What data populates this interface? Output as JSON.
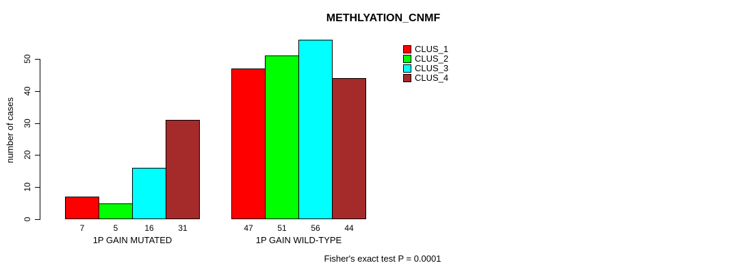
{
  "chart_data": {
    "type": "bar",
    "title": "METHLYATION_CNMF",
    "ylabel": "number of cases",
    "categories": [
      "1P GAIN MUTATED",
      "1P GAIN WILD-TYPE"
    ],
    "series": [
      {
        "name": "CLUS_1",
        "color": "#ff0000",
        "values": [
          7,
          47
        ]
      },
      {
        "name": "CLUS_2",
        "color": "#00ff00",
        "values": [
          5,
          51
        ]
      },
      {
        "name": "CLUS_3",
        "color": "#00ffff",
        "values": [
          16,
          56
        ]
      },
      {
        "name": "CLUS_4",
        "color": "#a52a2a",
        "values": [
          31,
          44
        ]
      }
    ],
    "yticks": [
      0,
      10,
      20,
      30,
      40,
      50
    ],
    "ylim": [
      0,
      56
    ],
    "grid": false,
    "bar_value_labels": true,
    "legend_position": "top-right",
    "annotation": "Fisher's exact test P = 0.0001"
  }
}
